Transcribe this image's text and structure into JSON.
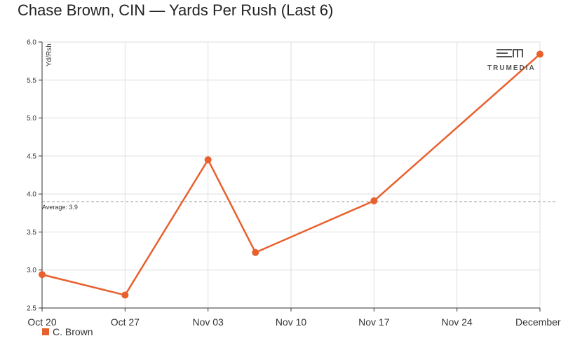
{
  "chart_data": {
    "type": "line",
    "title": "Chase Brown, CIN — Yards Per Rush (Last 6)",
    "xlabel": "",
    "ylabel": "Yd/Rsh",
    "x_tick_labels": [
      "Oct 20",
      "Oct 27",
      "Nov 03",
      "Nov 10",
      "Nov 17",
      "Nov 24",
      "December"
    ],
    "y_tick_labels": [
      "2.5",
      "3.0",
      "3.5",
      "4.0",
      "4.5",
      "5.0",
      "5.5",
      "6.0"
    ],
    "ylim": [
      2.5,
      6.0
    ],
    "xlim": [
      "2024-10-20",
      "2024-12-01"
    ],
    "grid": true,
    "series": [
      {
        "name": "C. Brown",
        "color": "#e8602c",
        "points": [
          {
            "x": "2024-10-20",
            "y": 2.94
          },
          {
            "x": "2024-10-27",
            "y": 2.67
          },
          {
            "x": "2024-11-03",
            "y": 4.45
          },
          {
            "x": "2024-11-07",
            "y": 3.23
          },
          {
            "x": "2024-11-17",
            "y": 3.91
          },
          {
            "x": "2024-12-01",
            "y": 5.84
          }
        ]
      }
    ],
    "average": {
      "value": 3.9,
      "label": "Average: 3.9"
    },
    "legend_position": "bottom-left"
  },
  "watermark": {
    "text": "TRUMEDIA"
  }
}
